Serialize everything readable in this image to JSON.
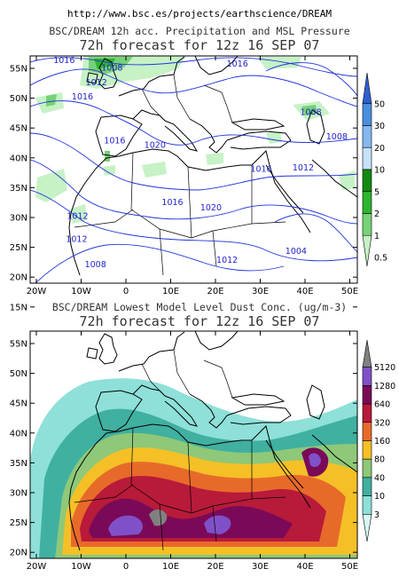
{
  "header": {
    "url": "http://www.bsc.es/projects/earthscience/DREAM"
  },
  "colors": {
    "isobar": "#2233dd",
    "coast": "#000000"
  },
  "panels": [
    {
      "title": "BSC/DREAM 12h acc. Precipitation and MSL Pressure",
      "subtitle": "72h forecast for 12z 16 SEP 07",
      "lat_labels": [
        "55N",
        "50N",
        "45N",
        "40N",
        "35N",
        "30N",
        "25N",
        "20N",
        "15N"
      ],
      "lon_labels": [
        "20W",
        "10W",
        "0",
        "10E",
        "20E",
        "30E",
        "40E",
        "50E"
      ],
      "colorbar": {
        "labels": [
          "50",
          "30",
          "20",
          "10",
          "5",
          "2",
          "1",
          "0.5"
        ],
        "colors": [
          "#3060d0",
          "#4a8ee0",
          "#86b8f0",
          "#c6e2fa",
          "#118a11",
          "#2eb42e",
          "#76d276",
          "#c6f2c6"
        ]
      },
      "isobars": [
        {
          "label": "1016",
          "lon": -13.8,
          "lat": 55.9
        },
        {
          "label": "1008",
          "lon": -3.1,
          "lat": 54.6
        },
        {
          "label": "1012",
          "lon": -6.6,
          "lat": 52.2
        },
        {
          "label": "1016",
          "lon": -9.7,
          "lat": 49.8
        },
        {
          "label": "1016",
          "lon": 24.9,
          "lat": 55.3
        },
        {
          "label": "1008",
          "lon": 41.3,
          "lat": 47.2
        },
        {
          "label": "1008",
          "lon": 47.1,
          "lat": 43.1
        },
        {
          "label": "1016",
          "lon": -2.5,
          "lat": 42.4
        },
        {
          "label": "1020",
          "lon": 6.5,
          "lat": 41.7
        },
        {
          "label": "1016",
          "lon": 30.2,
          "lat": 37.7
        },
        {
          "label": "1012",
          "lon": 39.6,
          "lat": 37.9
        },
        {
          "label": "1016",
          "lon": 10.4,
          "lat": 32.1
        },
        {
          "label": "1020",
          "lon": 19.0,
          "lat": 31.2
        },
        {
          "label": "1012",
          "lon": -10.8,
          "lat": 29.8
        },
        {
          "label": "1012",
          "lon": -11.0,
          "lat": 25.9
        },
        {
          "label": "1004",
          "lon": 38.0,
          "lat": 23.9
        },
        {
          "label": "1008",
          "lon": -6.8,
          "lat": 21.7
        },
        {
          "label": "1012",
          "lon": 22.6,
          "lat": 22.4
        },
        {
          "label": "1008",
          "lon": 26.5,
          "lat": 17.8
        }
      ]
    },
    {
      "title": "BSC/DREAM Lowest Model Level Dust Conc. (ug/m-3)",
      "subtitle": "72h forecast for 12z 16 SEP 07",
      "lat_labels": [
        "55N",
        "50N",
        "45N",
        "40N",
        "35N",
        "30N",
        "25N",
        "20N",
        "15N"
      ],
      "lon_labels": [
        "20W",
        "10W",
        "0",
        "10E",
        "20E",
        "30E",
        "40E",
        "50E"
      ],
      "colorbar": {
        "labels": [
          "5120",
          "1280",
          "640",
          "320",
          "160",
          "80",
          "40",
          "10",
          "3"
        ],
        "colors": [
          "#808080",
          "#8050c8",
          "#7a0a58",
          "#b81a3a",
          "#e86a2a",
          "#f4c026",
          "#8ec878",
          "#40b0a0",
          "#8ee0d8",
          "#d8f6f4"
        ]
      }
    }
  ]
}
